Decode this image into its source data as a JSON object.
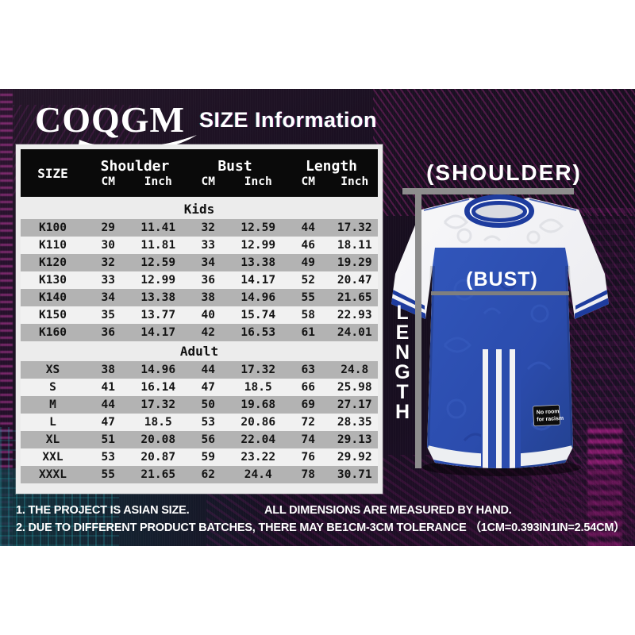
{
  "header": {
    "brand": "COQGM",
    "title": "SIZE Information"
  },
  "table": {
    "size_header": "SIZE",
    "group_headers": [
      "Shoulder",
      "Bust",
      "Length"
    ],
    "unit_cm": "CM",
    "unit_inch": "Inch"
  },
  "chart_data": {
    "type": "table",
    "title": "SIZE Information",
    "columns": [
      "SIZE",
      "Shoulder CM",
      "Shoulder Inch",
      "Bust CM",
      "Bust Inch",
      "Length CM",
      "Length Inch"
    ],
    "sections": [
      {
        "name": "Kids",
        "rows": [
          [
            "K100",
            "29",
            "11.41",
            "32",
            "12.59",
            "44",
            "17.32"
          ],
          [
            "K110",
            "30",
            "11.81",
            "33",
            "12.99",
            "46",
            "18.11"
          ],
          [
            "K120",
            "32",
            "12.59",
            "34",
            "13.38",
            "49",
            "19.29"
          ],
          [
            "K130",
            "33",
            "12.99",
            "36",
            "14.17",
            "52",
            "20.47"
          ],
          [
            "K140",
            "34",
            "13.38",
            "38",
            "14.96",
            "55",
            "21.65"
          ],
          [
            "K150",
            "35",
            "13.77",
            "40",
            "15.74",
            "58",
            "22.93"
          ],
          [
            "K160",
            "36",
            "14.17",
            "42",
            "16.53",
            "61",
            "24.01"
          ]
        ]
      },
      {
        "name": "Adult",
        "rows": [
          [
            "XS",
            "38",
            "14.96",
            "44",
            "17.32",
            "63",
            "24.8"
          ],
          [
            "S",
            "41",
            "16.14",
            "47",
            "18.5",
            "66",
            "25.98"
          ],
          [
            "M",
            "44",
            "17.32",
            "50",
            "19.68",
            "69",
            "27.17"
          ],
          [
            "L",
            "47",
            "18.5",
            "53",
            "20.86",
            "72",
            "28.35"
          ],
          [
            "XL",
            "51",
            "20.08",
            "56",
            "22.04",
            "74",
            "29.13"
          ],
          [
            "XXL",
            "53",
            "20.87",
            "59",
            "23.22",
            "76",
            "29.92"
          ],
          [
            "XXXL",
            "55",
            "21.65",
            "62",
            "24.4",
            "78",
            "30.71"
          ]
        ]
      }
    ]
  },
  "diagram": {
    "shoulder_label": "(SHOULDER)",
    "bust_label": "(BUST)",
    "length_label": "LENGTH",
    "patch_line1": "No room",
    "patch_line2": "for racism"
  },
  "notes": {
    "line1a": "1. THE PROJECT IS ASIAN SIZE.",
    "line1b": "ALL DIMENSIONS ARE MEASURED BY HAND.",
    "line2": "2. DUE TO DIFFERENT PRODUCT BATCHES, THERE MAY BE1CM-3CM TOLERANCE （1CM=0.393IN1IN=2.54CM）"
  },
  "colors": {
    "banner_bg": "#1b1022",
    "table_header_bg": "#0a0a0a",
    "table_row_gray": "#b3b3b3",
    "table_row_light": "#f1f1f1",
    "shirt_blue": "#2b4cad",
    "collar_navy": "#1e3c9e",
    "measure_gray": "#8d8d8d",
    "glitch_magenta": "#db40b7",
    "glitch_teal": "#28a5af"
  }
}
